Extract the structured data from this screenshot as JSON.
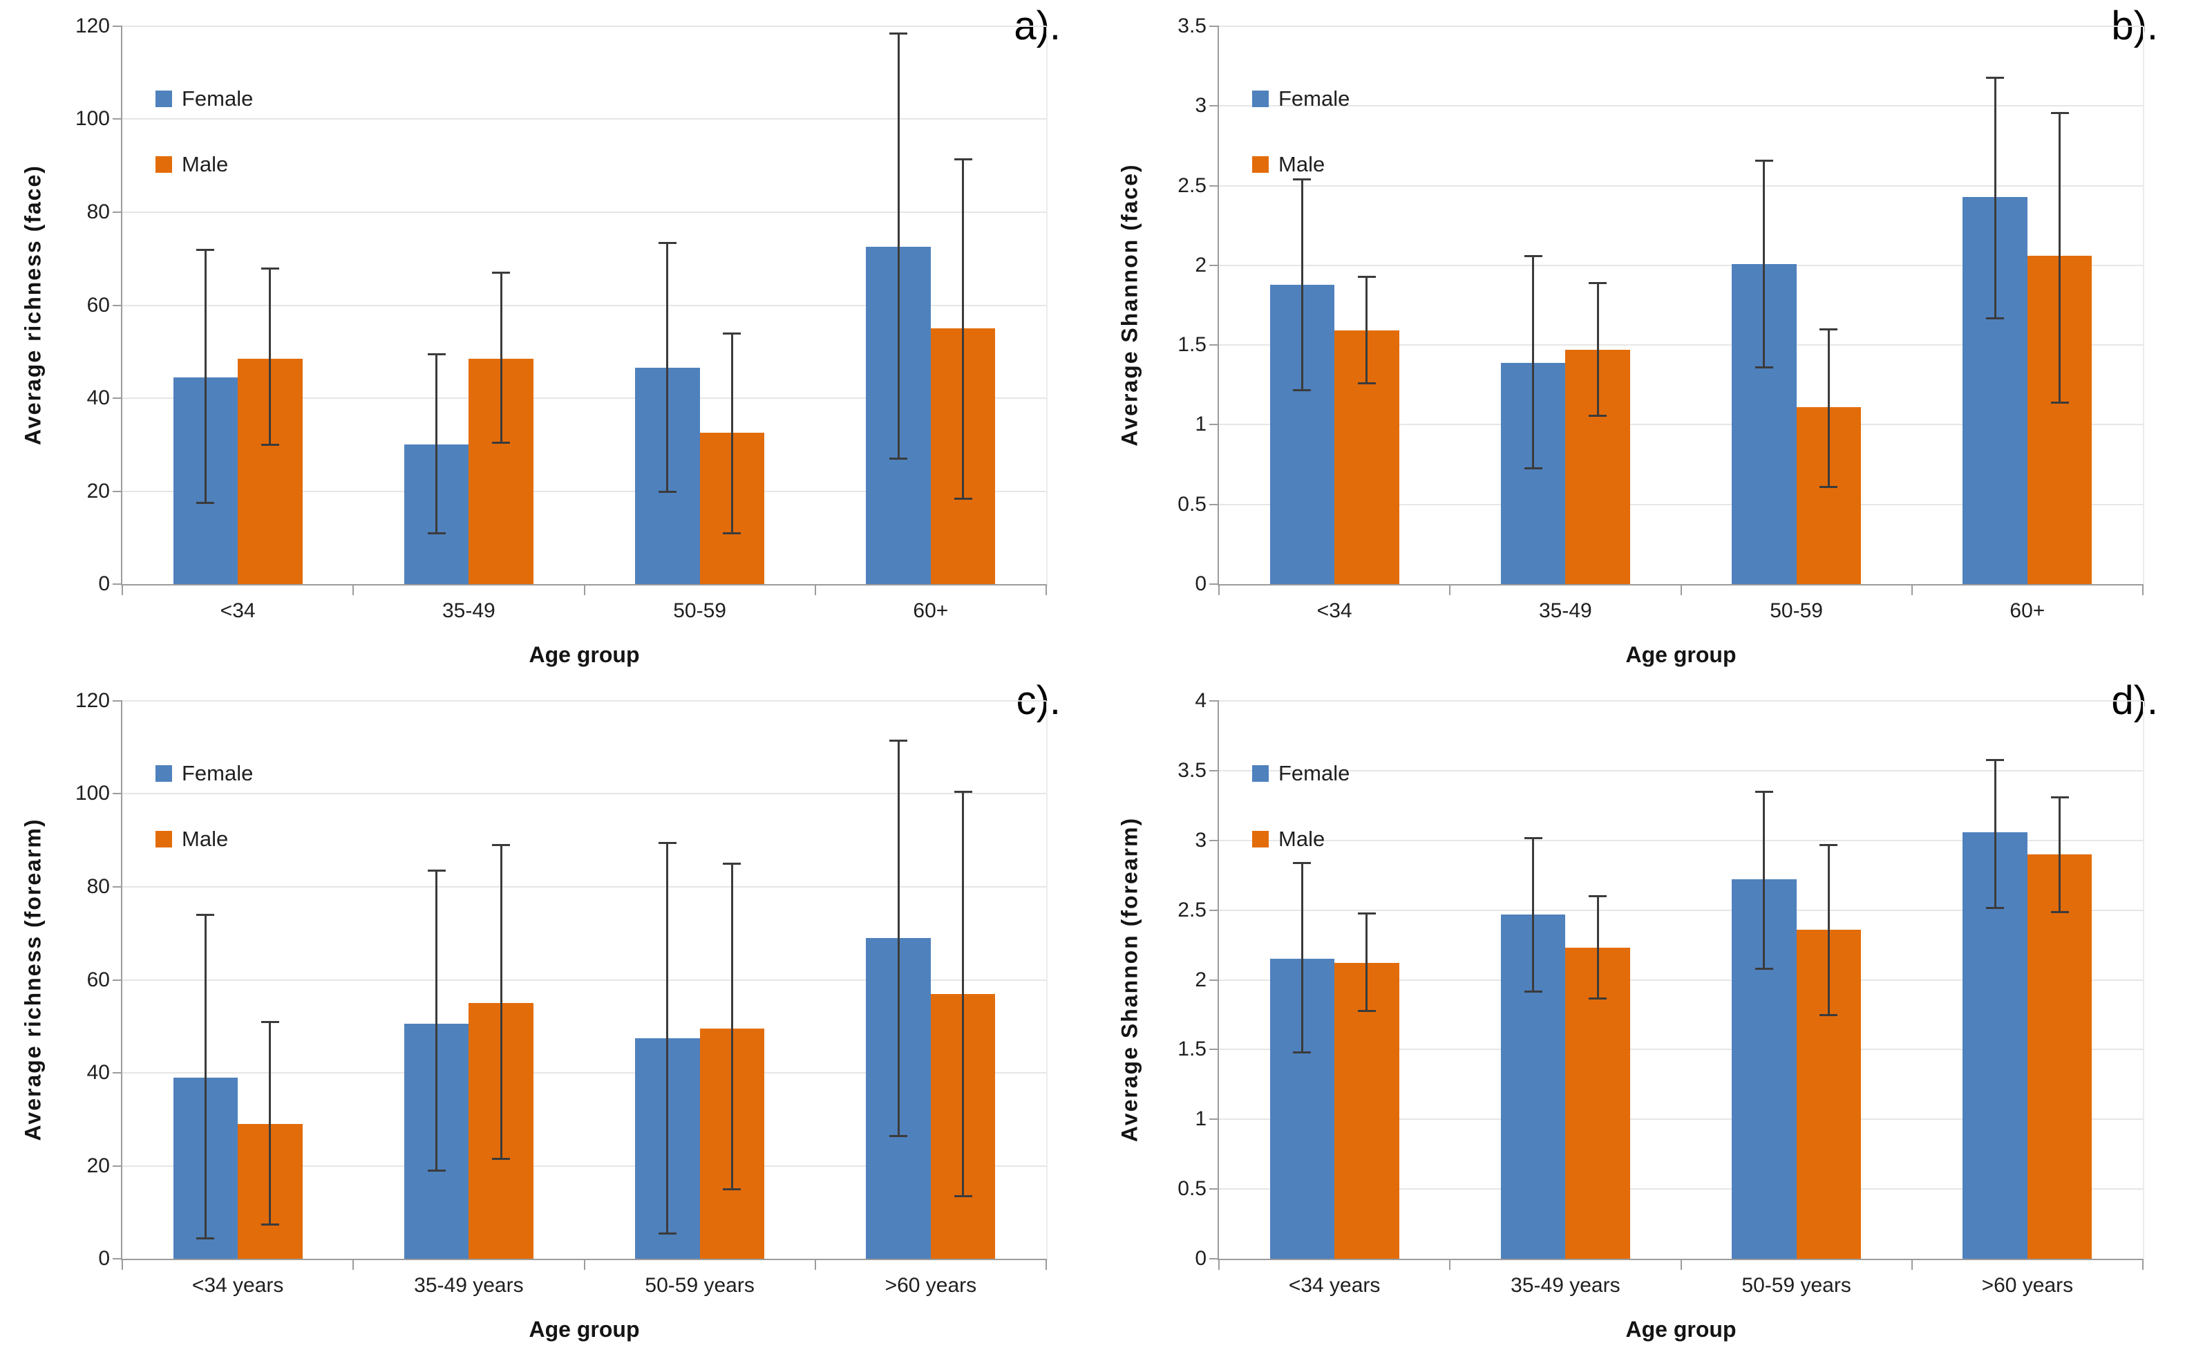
{
  "figure": {
    "legend_labels": [
      "Female",
      "Male"
    ],
    "colors": {
      "female": "#4F81BD",
      "male": "#E36C0A",
      "error_bar": "#3B3B3B",
      "gridline": "#E6E6E6",
      "axis_line": "#9C9C9C"
    }
  },
  "chart_data": [
    {
      "id": "a",
      "type": "bar",
      "panel_label": "a).",
      "ylabel": "Average richness (face)",
      "xlabel": "Age group",
      "ylim": [
        0,
        120
      ],
      "ytick_step": 20,
      "ytick_labels": [
        "0",
        "20",
        "40",
        "60",
        "80",
        "100",
        "120"
      ],
      "categories": [
        "<34",
        "35-49",
        "50-59",
        "60+"
      ],
      "grid": true,
      "legend_position": "top-left",
      "series": [
        {
          "name": "Female",
          "color": "#4F81BD",
          "values": [
            44.5,
            30,
            46.5,
            72.5
          ],
          "err_lo": [
            17.5,
            11,
            20,
            27
          ],
          "err_hi": [
            72,
            49.5,
            73.5,
            118.5
          ]
        },
        {
          "name": "Male",
          "color": "#E36C0A",
          "values": [
            48.5,
            48.5,
            32.5,
            55
          ],
          "err_lo": [
            30,
            30.5,
            11,
            18.5
          ],
          "err_hi": [
            68,
            67,
            54,
            91.5
          ]
        }
      ]
    },
    {
      "id": "b",
      "type": "bar",
      "panel_label": "b).",
      "ylabel": "Average Shannon (face)",
      "xlabel": "Age group",
      "ylim": [
        0,
        3.5
      ],
      "ytick_step": 0.5,
      "ytick_labels": [
        "0",
        "0.5",
        "1",
        "1.5",
        "2",
        "2.5",
        "3",
        "3.5"
      ],
      "categories": [
        "<34",
        "35-49",
        "50-59",
        "60+"
      ],
      "grid": true,
      "legend_position": "top-left",
      "series": [
        {
          "name": "Female",
          "color": "#4F81BD",
          "values": [
            1.88,
            1.39,
            2.01,
            2.43
          ],
          "err_lo": [
            1.22,
            0.73,
            1.36,
            1.67
          ],
          "err_hi": [
            2.54,
            2.06,
            2.66,
            3.18
          ]
        },
        {
          "name": "Male",
          "color": "#E36C0A",
          "values": [
            1.59,
            1.47,
            1.11,
            2.06
          ],
          "err_lo": [
            1.26,
            1.06,
            0.61,
            1.14
          ],
          "err_hi": [
            1.93,
            1.89,
            1.6,
            2.96
          ]
        }
      ]
    },
    {
      "id": "c",
      "type": "bar",
      "panel_label": "c).",
      "ylabel": "Average richness (forearm)",
      "xlabel": "Age group",
      "ylim": [
        0,
        120
      ],
      "ytick_step": 20,
      "ytick_labels": [
        "0",
        "20",
        "40",
        "60",
        "80",
        "100",
        "120"
      ],
      "categories": [
        "<34 years",
        "35-49 years",
        "50-59 years",
        ">60 years"
      ],
      "grid": true,
      "legend_position": "top-left",
      "series": [
        {
          "name": "Female",
          "color": "#4F81BD",
          "values": [
            39,
            50.5,
            47.5,
            69
          ],
          "err_lo": [
            4.5,
            19,
            5.5,
            26.5
          ],
          "err_hi": [
            74,
            83.5,
            89.5,
            111.5
          ]
        },
        {
          "name": "Male",
          "color": "#E36C0A",
          "values": [
            29,
            55,
            49.5,
            57
          ],
          "err_lo": [
            7.5,
            21.5,
            15,
            13.5
          ],
          "err_hi": [
            51,
            89,
            85,
            100.5
          ]
        }
      ]
    },
    {
      "id": "d",
      "type": "bar",
      "panel_label": "d).",
      "ylabel": "Average Shannon (forearm)",
      "xlabel": "Age group",
      "ylim": [
        0,
        4
      ],
      "ytick_step": 0.5,
      "ytick_labels": [
        "0",
        "0.5",
        "1",
        "1.5",
        "2",
        "2.5",
        "3",
        "3.5",
        "4"
      ],
      "categories": [
        "<34 years",
        "35-49 years",
        "50-59 years",
        ">60 years"
      ],
      "grid": true,
      "legend_position": "top-left",
      "series": [
        {
          "name": "Female",
          "color": "#4F81BD",
          "values": [
            2.15,
            2.47,
            2.72,
            3.06
          ],
          "err_lo": [
            1.48,
            1.92,
            2.08,
            2.52
          ],
          "err_hi": [
            2.84,
            3.02,
            3.35,
            3.58
          ]
        },
        {
          "name": "Male",
          "color": "#E36C0A",
          "values": [
            2.12,
            2.23,
            2.36,
            2.9
          ],
          "err_lo": [
            1.78,
            1.87,
            1.75,
            2.49
          ],
          "err_hi": [
            2.48,
            2.6,
            2.97,
            3.31
          ]
        }
      ]
    }
  ]
}
